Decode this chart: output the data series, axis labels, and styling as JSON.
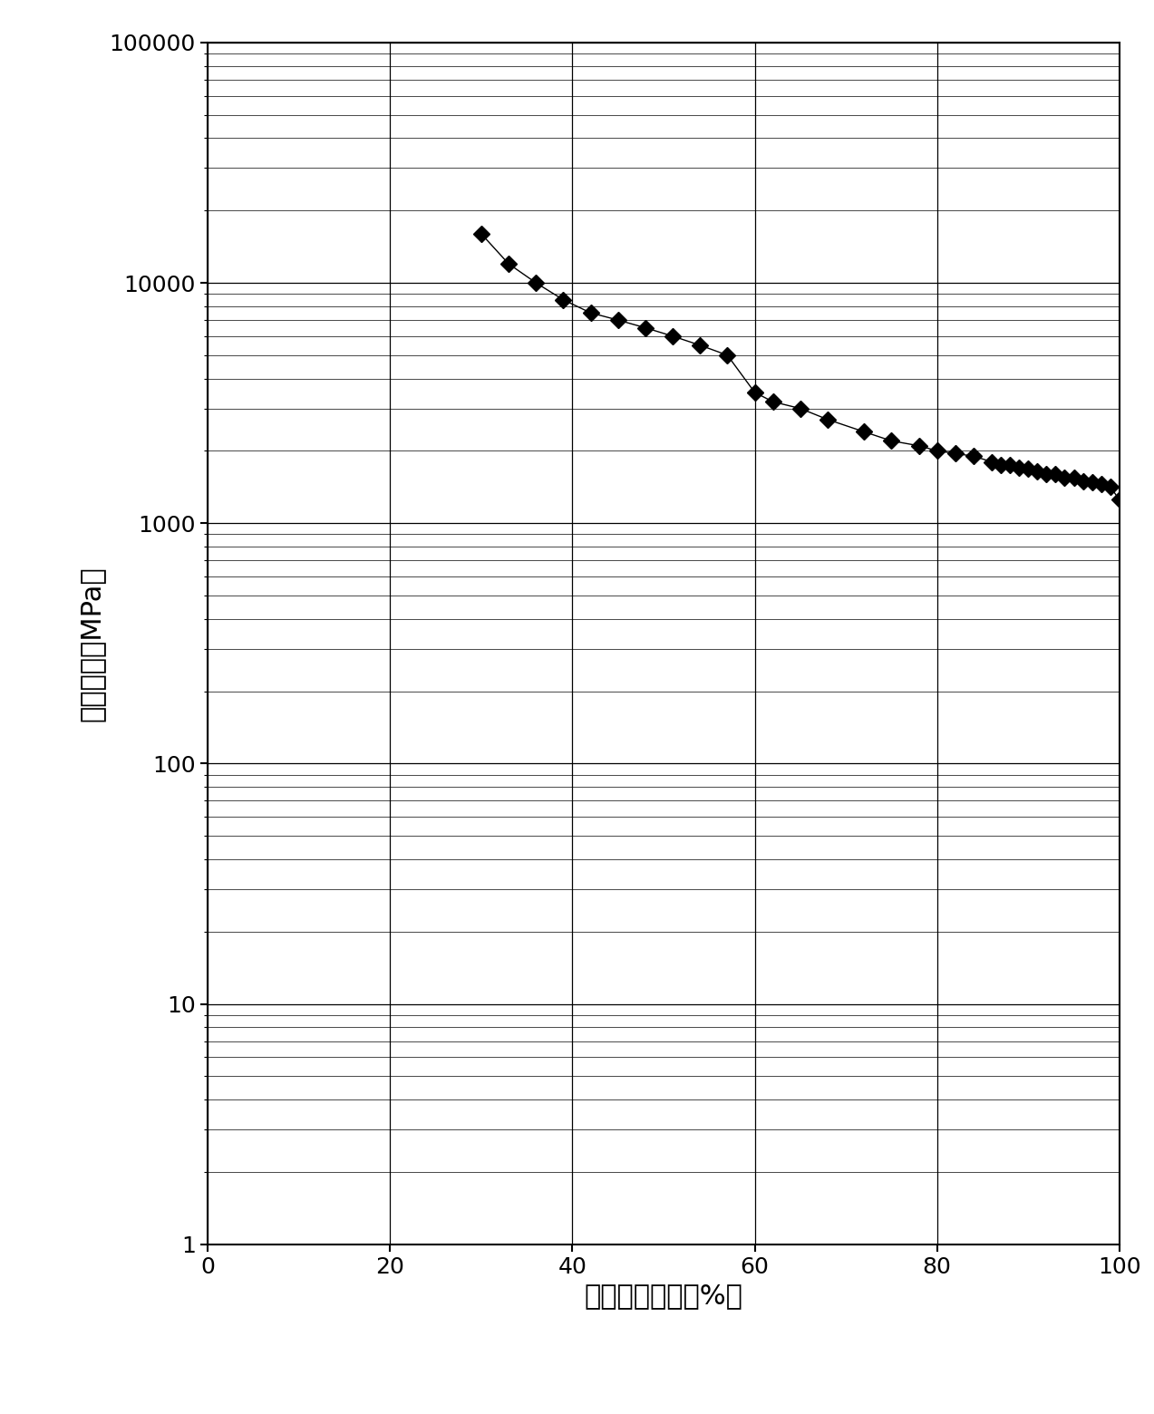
{
  "title": "",
  "xlabel": "潤湿相饱和度（%）",
  "ylabel": "毛管压力（MPa）",
  "xlim": [
    0,
    100
  ],
  "ylim_log": [
    1,
    100000
  ],
  "background_color": "#ffffff",
  "line_color": "#000000",
  "marker_color": "#000000",
  "x_data": [
    30,
    33,
    36,
    39,
    42,
    45,
    48,
    51,
    54,
    57,
    60,
    62,
    65,
    68,
    72,
    75,
    78,
    80,
    82,
    84,
    86,
    87,
    88,
    89,
    90,
    91,
    92,
    93,
    94,
    95,
    96,
    97,
    98,
    99,
    100
  ],
  "y_data": [
    16000,
    12000,
    10000,
    8500,
    7500,
    7000,
    6500,
    6000,
    5500,
    5000,
    3500,
    3200,
    3000,
    2700,
    2400,
    2200,
    2100,
    2000,
    1950,
    1900,
    1800,
    1750,
    1750,
    1700,
    1680,
    1650,
    1600,
    1600,
    1550,
    1550,
    1500,
    1480,
    1450,
    1420,
    1250
  ],
  "xticks": [
    0,
    20,
    40,
    60,
    80,
    100
  ],
  "yticks_log": [
    1,
    10,
    100,
    1000,
    10000,
    100000
  ],
  "grid_color": "#000000",
  "grid_major_linewidth": 0.9,
  "grid_minor_linewidth": 0.5,
  "axis_linewidth": 1.5,
  "marker_size": 9,
  "line_linewidth": 1.0,
  "xlabel_fontsize": 22,
  "ylabel_fontsize": 22,
  "tick_fontsize": 18
}
